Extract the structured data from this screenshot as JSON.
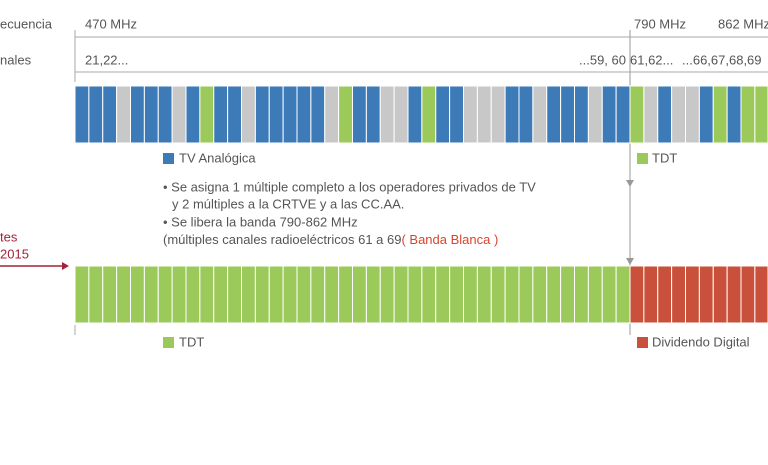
{
  "axis": {
    "frequency_label": "ecuencia",
    "channels_label": "nales",
    "freq_470": "470 MHz",
    "freq_790": "790 MHz",
    "freq_862": "862 MHz",
    "ch_start": "21,22...",
    "ch_mid_end": "...59, 60",
    "ch_61": "61,62...",
    "ch_end": "...66,67,68,69"
  },
  "legend_top": {
    "analog": "TV Analógica",
    "tdt": "TDT"
  },
  "notes": {
    "line1": "• Se asigna 1 múltiple completo a los operadores privados de TV",
    "line2": "y 2 múltiples a la CRTVE y a las CC.AA.",
    "line3": "• Se libera la banda 790-862 MHz",
    "line4": "(múltiples canales radioeléctricos 61 a 69",
    "line4_highlight": "( Banda Blanca )"
  },
  "side_label": {
    "line1": "tes",
    "line2": "2015"
  },
  "legend_bottom": {
    "tdt": "TDT",
    "dividend": "Dividendo Digital"
  }
}
